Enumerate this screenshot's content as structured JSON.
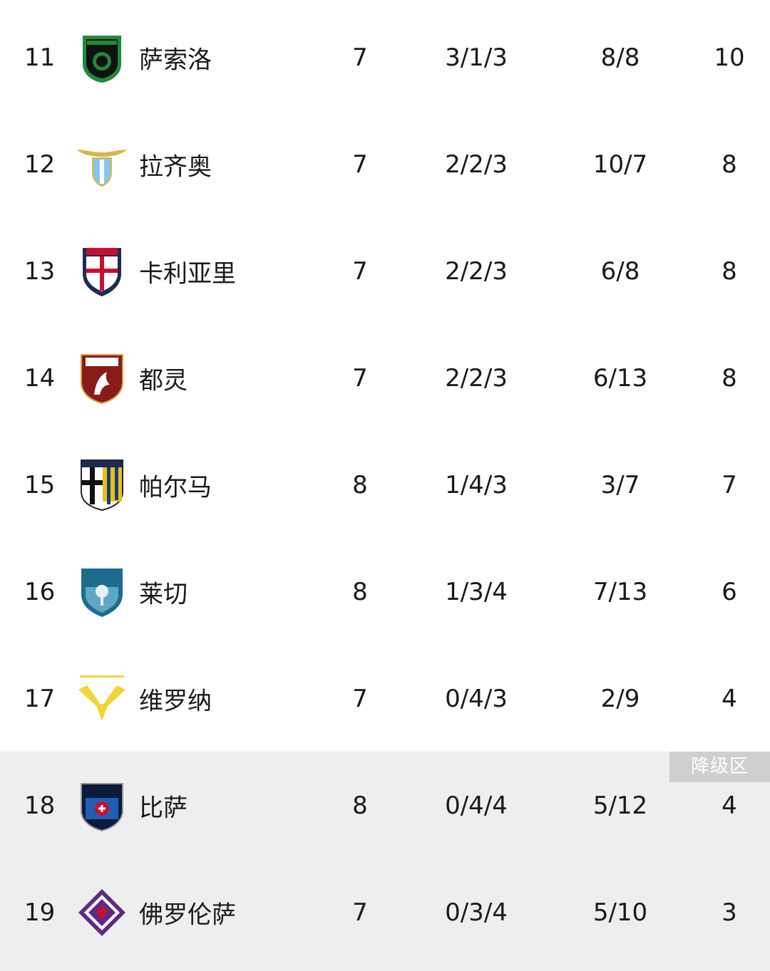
{
  "relegation_label": "降级区",
  "colors": {
    "zone_bg": "#eeeeee",
    "badge_bg": "#cfcfcf"
  },
  "rows": [
    {
      "rank": "11",
      "team": "萨索洛",
      "logo": "sassuolo-crest",
      "played": "7",
      "wdl": "3/1/3",
      "goals": "8/8",
      "points": "10"
    },
    {
      "rank": "12",
      "team": "拉齐奥",
      "logo": "lazio-crest",
      "played": "7",
      "wdl": "2/2/3",
      "goals": "10/7",
      "points": "8"
    },
    {
      "rank": "13",
      "team": "卡利亚里",
      "logo": "cagliari-crest",
      "played": "7",
      "wdl": "2/2/3",
      "goals": "6/8",
      "points": "8"
    },
    {
      "rank": "14",
      "team": "都灵",
      "logo": "torino-crest",
      "played": "7",
      "wdl": "2/2/3",
      "goals": "6/13",
      "points": "8"
    },
    {
      "rank": "15",
      "team": "帕尔马",
      "logo": "parma-crest",
      "played": "8",
      "wdl": "1/4/3",
      "goals": "3/7",
      "points": "7"
    },
    {
      "rank": "16",
      "team": "莱切",
      "logo": "lecce-crest",
      "played": "8",
      "wdl": "1/3/4",
      "goals": "7/13",
      "points": "6"
    },
    {
      "rank": "17",
      "team": "维罗纳",
      "logo": "verona-crest",
      "played": "7",
      "wdl": "0/4/3",
      "goals": "2/9",
      "points": "4"
    },
    {
      "rank": "18",
      "team": "比萨",
      "logo": "pisa-crest",
      "played": "8",
      "wdl": "0/4/4",
      "goals": "5/12",
      "points": "4"
    },
    {
      "rank": "19",
      "team": "佛罗伦萨",
      "logo": "fiorentina-crest",
      "played": "7",
      "wdl": "0/3/4",
      "goals": "5/10",
      "points": "3"
    }
  ]
}
